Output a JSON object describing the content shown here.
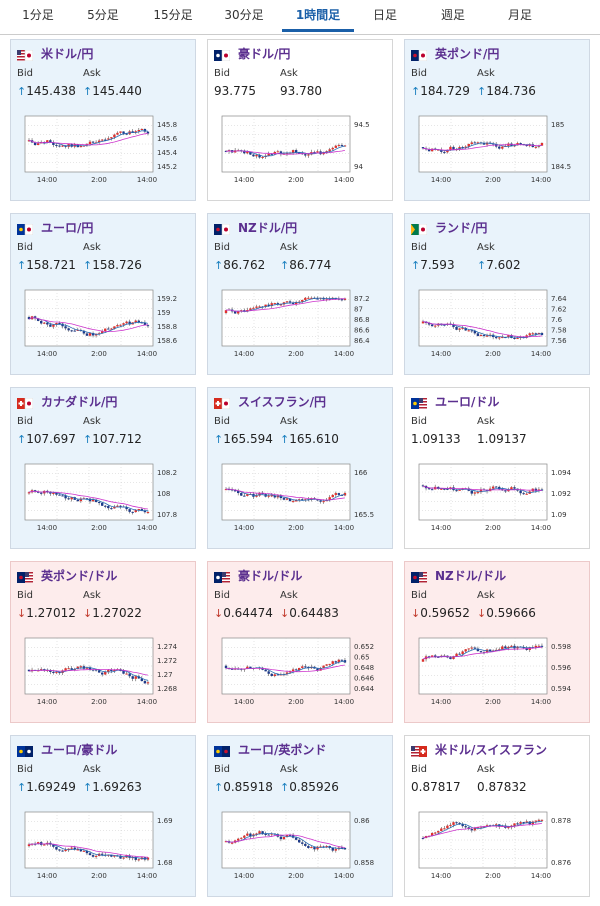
{
  "tabs": [
    {
      "label": "1分足",
      "active": false
    },
    {
      "label": "5分足",
      "active": false
    },
    {
      "label": "15分足",
      "active": false
    },
    {
      "label": "30分足",
      "active": false
    },
    {
      "label": "1時間足",
      "active": true
    },
    {
      "label": "日足",
      "active": false
    },
    {
      "label": "週足",
      "active": false
    },
    {
      "label": "月足",
      "active": false
    }
  ],
  "labels": {
    "bid": "Bid",
    "ask": "Ask"
  },
  "colors": {
    "up": "#1a7fbf",
    "down": "#c0392b",
    "candle_up": "#e0322e",
    "candle_down": "#1e3a8a",
    "ma_short": "#2a6db5",
    "ma_long": "#cc33cc"
  },
  "cards": [
    {
      "pair": "米ドル/円",
      "flag": "us-jp",
      "trend": "up",
      "bid": "145.438",
      "ask": "145.440",
      "y_ticks": [
        "145.8",
        "145.6",
        "145.4",
        "145.2"
      ],
      "x_ticks": [
        "14:00",
        "2:00",
        "14:00"
      ]
    },
    {
      "pair": "豪ドル/円",
      "flag": "au-jp",
      "trend": "neutral",
      "bid": "93.775",
      "ask": "93.780",
      "y_ticks": [
        "94.5",
        "94"
      ],
      "x_ticks": [
        "14:00",
        "2:00",
        "14:00"
      ]
    },
    {
      "pair": "英ポンド/円",
      "flag": "gb-jp",
      "trend": "up",
      "bid": "184.729",
      "ask": "184.736",
      "y_ticks": [
        "185",
        "184.5"
      ],
      "x_ticks": [
        "14:00",
        "2:00",
        "14:00"
      ]
    },
    {
      "pair": "ユーロ/円",
      "flag": "eu-jp",
      "trend": "up",
      "bid": "158.721",
      "ask": "158.726",
      "y_ticks": [
        "159.2",
        "159",
        "158.8",
        "158.6"
      ],
      "x_ticks": [
        "14:00",
        "2:00",
        "14:00"
      ]
    },
    {
      "pair": "NZドル/円",
      "flag": "nz-jp",
      "trend": "up",
      "bid": "86.762",
      "ask": "86.774",
      "y_ticks": [
        "87.2",
        "87",
        "86.8",
        "86.6",
        "86.4"
      ],
      "x_ticks": [
        "14:00",
        "2:00",
        "14:00"
      ]
    },
    {
      "pair": "ランド/円",
      "flag": "za-jp",
      "trend": "up",
      "bid": "7.593",
      "ask": "7.602",
      "y_ticks": [
        "7.64",
        "7.62",
        "7.6",
        "7.58",
        "7.56"
      ],
      "x_ticks": [
        "14:00",
        "2:00",
        "14:00"
      ]
    },
    {
      "pair": "カナダドル/円",
      "flag": "ca-jp",
      "trend": "up",
      "bid": "107.697",
      "ask": "107.712",
      "y_ticks": [
        "108.2",
        "108",
        "107.8"
      ],
      "x_ticks": [
        "14:00",
        "2:00",
        "14:00"
      ]
    },
    {
      "pair": "スイスフラン/円",
      "flag": "ch-jp",
      "trend": "up",
      "bid": "165.594",
      "ask": "165.610",
      "y_ticks": [
        "166",
        "165.5"
      ],
      "x_ticks": [
        "14:00",
        "2:00",
        "14:00"
      ]
    },
    {
      "pair": "ユーロ/ドル",
      "flag": "eu-us",
      "trend": "neutral",
      "bid": "1.09133",
      "ask": "1.09137",
      "y_ticks": [
        "1.094",
        "1.092",
        "1.09"
      ],
      "x_ticks": [
        "14:00",
        "2:00",
        "14:00"
      ]
    },
    {
      "pair": "英ポンド/ドル",
      "flag": "gb-us",
      "trend": "down",
      "bid": "1.27012",
      "ask": "1.27022",
      "y_ticks": [
        "1.274",
        "1.272",
        "1.27",
        "1.268"
      ],
      "x_ticks": [
        "14:00",
        "2:00",
        "14:00"
      ]
    },
    {
      "pair": "豪ドル/ドル",
      "flag": "au-us",
      "trend": "down",
      "bid": "0.64474",
      "ask": "0.64483",
      "y_ticks": [
        "0.652",
        "0.65",
        "0.648",
        "0.646",
        "0.644"
      ],
      "x_ticks": [
        "14:00",
        "2:00",
        "14:00"
      ]
    },
    {
      "pair": "NZドル/ドル",
      "flag": "nz-us",
      "trend": "down",
      "bid": "0.59652",
      "ask": "0.59666",
      "y_ticks": [
        "0.598",
        "0.596",
        "0.594"
      ],
      "x_ticks": [
        "14:00",
        "2:00",
        "14:00"
      ]
    },
    {
      "pair": "ユーロ/豪ドル",
      "flag": "eu-au",
      "trend": "up",
      "bid": "1.69249",
      "ask": "1.69263",
      "y_ticks": [
        "1.69",
        "1.68"
      ],
      "x_ticks": [
        "14:00",
        "2:00",
        "14:00"
      ]
    },
    {
      "pair": "ユーロ/英ポンド",
      "flag": "eu-gb",
      "trend": "up",
      "bid": "0.85918",
      "ask": "0.85926",
      "y_ticks": [
        "0.86",
        "0.858"
      ],
      "x_ticks": [
        "14:00",
        "2:00",
        "14:00"
      ]
    },
    {
      "pair": "米ドル/スイスフラン",
      "flag": "us-ch",
      "trend": "neutral",
      "bid": "0.87817",
      "ask": "0.87832",
      "y_ticks": [
        "0.878",
        "0.876"
      ],
      "x_ticks": [
        "14:00",
        "2:00",
        "14:00"
      ]
    }
  ]
}
